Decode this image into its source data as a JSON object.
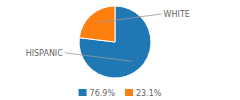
{
  "chart_data": {
    "type": "pie",
    "categories": [
      "HISPANIC",
      "WHITE"
    ],
    "values": [
      76.9,
      23.1
    ],
    "value_labels": [
      "76.9%",
      "23.1%"
    ],
    "legend": "bottom"
  }
}
